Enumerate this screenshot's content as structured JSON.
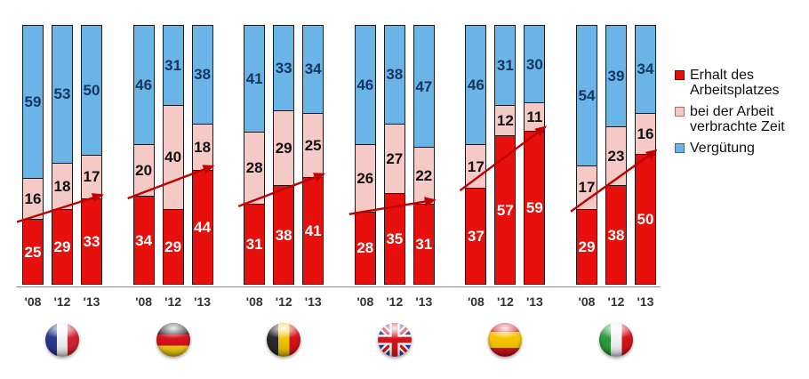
{
  "chart_data": {
    "type": "bar",
    "stacked": true,
    "unit": "percent",
    "categories": [
      "'08",
      "'12",
      "'13"
    ],
    "series_names": [
      "Erhalt des Arbeitsplatzes",
      "bei der Arbeit verbrachte Zeit",
      "Vergütung"
    ],
    "series_colors": [
      "#e8100c",
      "#f5c9c6",
      "#6ab4e8"
    ],
    "label_colors": {
      "red_segment": "#ffffff",
      "pink_segment": "#111111",
      "blue_segment": "#17365d"
    },
    "trend_arrow_color": "#c00000",
    "groups": [
      {
        "country": "france",
        "bars": [
          [
            25,
            16,
            59
          ],
          [
            29,
            18,
            53
          ],
          [
            33,
            17,
            50
          ]
        ]
      },
      {
        "country": "germany",
        "bars": [
          [
            34,
            20,
            46
          ],
          [
            29,
            40,
            31
          ],
          [
            44,
            18,
            38
          ]
        ]
      },
      {
        "country": "belgium",
        "bars": [
          [
            31,
            28,
            41
          ],
          [
            38,
            29,
            33
          ],
          [
            41,
            25,
            34
          ]
        ]
      },
      {
        "country": "uk",
        "bars": [
          [
            28,
            26,
            46
          ],
          [
            35,
            27,
            38
          ],
          [
            31,
            22,
            47
          ]
        ]
      },
      {
        "country": "spain",
        "bars": [
          [
            37,
            17,
            46
          ],
          [
            57,
            12,
            31
          ],
          [
            59,
            11,
            30
          ]
        ]
      },
      {
        "country": "italy",
        "bars": [
          [
            29,
            17,
            54
          ],
          [
            38,
            23,
            39
          ],
          [
            50,
            16,
            34
          ]
        ]
      }
    ]
  },
  "legend": {
    "items": [
      {
        "label": "Erhalt des\nArbeitsplatzes",
        "color": "#e8100c",
        "border": "#7f0000"
      },
      {
        "label": "bei der Arbeit\nverbrachte Zeit",
        "color": "#f5c9c6",
        "border": "#b96a64"
      },
      {
        "label": "Vergütung",
        "color": "#6ab4e8",
        "border": "#2e6da0"
      }
    ]
  }
}
